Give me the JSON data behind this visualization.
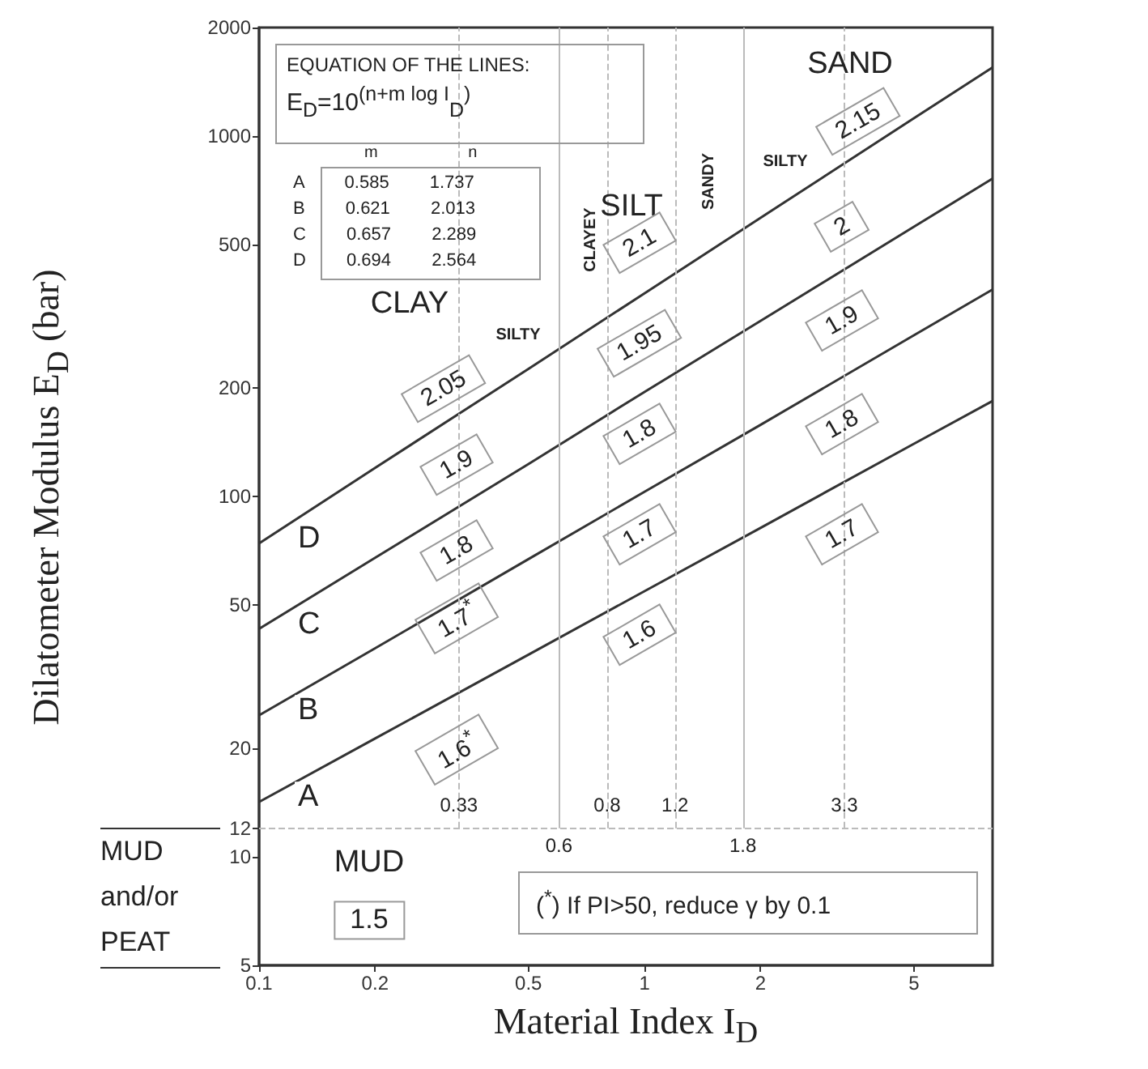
{
  "chart_data": {
    "type": "line",
    "xlabel": "Material Index  I$_{D}$",
    "ylabel": "Dilatometer Modulus  E$_{D}$ (bar)",
    "log": "xy",
    "xlim": [
      0.1,
      8
    ],
    "ylim": [
      5,
      2000
    ],
    "xticks": [
      0.1,
      0.2,
      0.5,
      1,
      2,
      5
    ],
    "yticks": [
      5,
      10,
      12,
      20,
      50,
      100,
      200,
      500,
      1000,
      2000
    ],
    "grid": false,
    "legend": false,
    "marker": "none",
    "line_style": "solid",
    "series": [
      {
        "name": "A",
        "color": "#333333",
        "x": [
          0.1,
          0.2,
          0.5,
          1,
          2,
          5,
          8
        ],
        "values": [
          14.2,
          21.3,
          36.4,
          54.6,
          81.8,
          140,
          184
        ]
      },
      {
        "name": "B",
        "color": "#333333",
        "x": [
          0.1,
          0.2,
          0.5,
          1,
          2,
          5,
          8
        ],
        "values": [
          24.7,
          37.9,
          67.0,
          103,
          158,
          280,
          375
        ]
      },
      {
        "name": "C",
        "color": "#333333",
        "x": [
          0.1,
          0.2,
          0.5,
          1,
          2,
          5,
          8
        ],
        "values": [
          42.9,
          67.6,
          123,
          195,
          307,
          560,
          762
        ]
      },
      {
        "name": "D",
        "color": "#333333",
        "x": [
          0.1,
          0.2,
          0.5,
          1,
          2,
          5,
          8
        ],
        "values": [
          74.1,
          120,
          226,
          366,
          593,
          1120,
          1550
        ]
      }
    ],
    "ref_lines": [
      {
        "axis": "y",
        "value": 12,
        "line_style": "dashed",
        "color": "#bbbbbb"
      },
      {
        "axis": "x",
        "value": 0.33,
        "label": "0.33",
        "line_style": "dashed",
        "color": "#bbbbbb"
      },
      {
        "axis": "x",
        "value": 0.6,
        "label": "0.6",
        "line_style": "solid",
        "color": "#bbbbbb"
      },
      {
        "axis": "x",
        "value": 0.8,
        "label": "0.8",
        "line_style": "dashed",
        "color": "#bbbbbb"
      },
      {
        "axis": "x",
        "value": 1.2,
        "label": "1.2",
        "line_style": "dashed",
        "color": "#bbbbbb"
      },
      {
        "axis": "x",
        "value": 1.8,
        "label": "1.8",
        "line_style": "solid",
        "color": "#bbbbbb"
      },
      {
        "axis": "x",
        "value": 3.3,
        "label": "3.3",
        "line_style": "dashed",
        "color": "#bbbbbb"
      }
    ],
    "annotations": [
      "EQUATION OF THE LINES:",
      "E$_{D}$=10$^{(n+m  log I}$$_{D}$$^{)}$",
      "m n",
      "A 0.585 1.737",
      "B 0.621 2.013",
      "C 0.657 2.289",
      "D 0.694 2.564",
      "($^{*}$) If PI>50, reduce γ by 0.1",
      "MUD and/or PEAT",
      "CLAY",
      "SILTY",
      "SILT",
      "CLAYEY",
      "SANDY",
      "SILTY",
      "SAND",
      "MUD",
      "2.05",
      "1.9",
      "1.8",
      "1.7$^{*}$",
      "1.6$^{*}$",
      "2.1",
      "1.95",
      "1.8",
      "1.7",
      "1.6",
      "2.15",
      "2",
      "1.9",
      "1.8",
      "1.7",
      "1.5"
    ]
  }
}
